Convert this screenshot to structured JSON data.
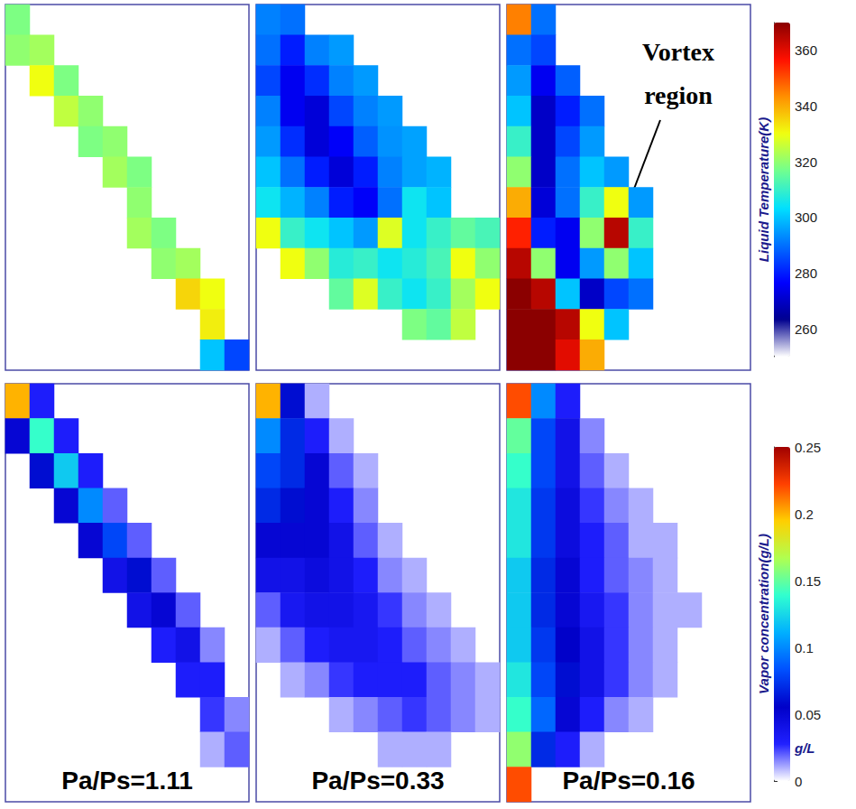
{
  "chart_data": {
    "type": "heatmap",
    "columns": [
      "Pa/Ps=1.11",
      "Pa/Ps=0.33",
      "Pa/Ps=0.16"
    ],
    "rows": [
      {
        "colorbar_title": "Liquid Temperature(K)",
        "colorbar_range": [
          250,
          370
        ],
        "colorbar_ticks": [
          260,
          280,
          300,
          320,
          340,
          360
        ],
        "panels": [
          [
            [
              318,
              null,
              null,
              null,
              null,
              null,
              null,
              null,
              null,
              null
            ],
            [
              320,
              322,
              null,
              null,
              null,
              null,
              null,
              null,
              null,
              null
            ],
            [
              null,
              330,
              318,
              null,
              null,
              null,
              null,
              null,
              null,
              null
            ],
            [
              null,
              null,
              325,
              320,
              null,
              null,
              null,
              null,
              null,
              null
            ],
            [
              null,
              null,
              null,
              318,
              320,
              null,
              null,
              null,
              null,
              null
            ],
            [
              null,
              null,
              null,
              null,
              322,
              318,
              null,
              null,
              null,
              null
            ],
            [
              null,
              null,
              null,
              null,
              null,
              320,
              null,
              null,
              null,
              null
            ],
            [
              null,
              null,
              null,
              null,
              null,
              322,
              318,
              null,
              null,
              null
            ],
            [
              null,
              null,
              null,
              null,
              null,
              null,
              320,
              322,
              null,
              null
            ],
            [
              null,
              null,
              null,
              null,
              null,
              null,
              null,
              335,
              330,
              null
            ],
            [
              null,
              null,
              null,
              null,
              null,
              null,
              null,
              null,
              332,
              null
            ],
            [
              null,
              null,
              null,
              null,
              null,
              null,
              null,
              null,
              300,
              285
            ]
          ],
          [
            [
              292,
              290,
              null,
              null,
              null,
              null,
              null,
              null,
              null,
              null
            ],
            [
              290,
              280,
              292,
              295,
              null,
              null,
              null,
              null,
              null,
              null
            ],
            [
              285,
              275,
              282,
              292,
              295,
              null,
              null,
              null,
              null,
              null
            ],
            [
              292,
              275,
              272,
              285,
              292,
              295,
              null,
              null,
              null,
              null
            ],
            [
              295,
              282,
              272,
              276,
              288,
              294,
              296,
              null,
              null,
              null
            ],
            [
              300,
              290,
              280,
              272,
              280,
              292,
              296,
              298,
              null,
              null
            ],
            [
              305,
              298,
              292,
              280,
              276,
              290,
              305,
              300,
              null,
              null
            ],
            [
              330,
              310,
              305,
              300,
              295,
              328,
              305,
              310,
              315,
              312
            ],
            [
              null,
              330,
              320,
              308,
              310,
              305,
              308,
              312,
              330,
              320
            ],
            [
              null,
              null,
              null,
              315,
              328,
              310,
              305,
              310,
              322,
              330
            ],
            [
              null,
              null,
              null,
              null,
              null,
              null,
              318,
              315,
              325,
              null
            ],
            [
              null,
              null,
              null,
              null,
              null,
              null,
              null,
              null,
              null,
              null
            ]
          ],
          [
            [
              345,
              290,
              null,
              null,
              null,
              null,
              null,
              null,
              null,
              null
            ],
            [
              290,
              285,
              null,
              null,
              null,
              null,
              null,
              null,
              null,
              null
            ],
            [
              295,
              275,
              288,
              null,
              null,
              null,
              null,
              null,
              null,
              null
            ],
            [
              300,
              270,
              280,
              290,
              null,
              null,
              null,
              null,
              null,
              null
            ],
            [
              310,
              270,
              285,
              295,
              null,
              null,
              null,
              null,
              null,
              null
            ],
            [
              320,
              270,
              290,
              300,
              295,
              null,
              null,
              null,
              null,
              null
            ],
            [
              340,
              272,
              290,
              310,
              330,
              295,
              null,
              null,
              null,
              null
            ],
            [
              355,
              280,
              275,
              320,
              365,
              310,
              null,
              null,
              null,
              null
            ],
            [
              365,
              320,
              275,
              295,
              320,
              300,
              null,
              null,
              null,
              null
            ],
            [
              370,
              365,
              300,
              270,
              285,
              290,
              null,
              null,
              null,
              null
            ],
            [
              370,
              370,
              365,
              330,
              300,
              null,
              null,
              null,
              null,
              null
            ],
            [
              370,
              370,
              360,
              340,
              null,
              null,
              null,
              null,
              null,
              null
            ]
          ]
        ]
      },
      {
        "colorbar_title": "Vapor concentration(g/L)",
        "colorbar_unit": "g/L",
        "colorbar_range": [
          0,
          0.25
        ],
        "colorbar_ticks": [
          0,
          0.05,
          0.1,
          0.15,
          0.2,
          0.25
        ],
        "panels": [
          [
            [
              0.2,
              0.03,
              null,
              null,
              null,
              null,
              null,
              null,
              null,
              null
            ],
            [
              0.05,
              0.14,
              0.03,
              null,
              null,
              null,
              null,
              null,
              null,
              null
            ],
            [
              null,
              0.06,
              0.12,
              0.03,
              null,
              null,
              null,
              null,
              null,
              null
            ],
            [
              null,
              null,
              0.05,
              0.1,
              0.02,
              null,
              null,
              null,
              null,
              null
            ],
            [
              null,
              null,
              null,
              0.05,
              0.08,
              0.02,
              null,
              null,
              null,
              null
            ],
            [
              null,
              null,
              null,
              null,
              0.04,
              0.06,
              0.02,
              null,
              null,
              null
            ],
            [
              null,
              null,
              null,
              null,
              null,
              0.04,
              0.05,
              0.02,
              null,
              null
            ],
            [
              null,
              null,
              null,
              null,
              null,
              null,
              0.03,
              0.04,
              0.015,
              null
            ],
            [
              null,
              null,
              null,
              null,
              null,
              null,
              null,
              0.03,
              0.03,
              null
            ],
            [
              null,
              null,
              null,
              null,
              null,
              null,
              null,
              null,
              0.025,
              0.015
            ],
            [
              null,
              null,
              null,
              null,
              null,
              null,
              null,
              null,
              0.01,
              0.02
            ],
            [
              null,
              null,
              null,
              null,
              null,
              null,
              null,
              null,
              null,
              null
            ]
          ],
          [
            [
              0.2,
              0.06,
              0.01,
              null,
              null,
              null,
              null,
              null,
              null,
              null
            ],
            [
              0.1,
              0.07,
              0.03,
              0.01,
              null,
              null,
              null,
              null,
              null,
              null
            ],
            [
              0.08,
              0.07,
              0.05,
              0.02,
              0.01,
              null,
              null,
              null,
              null,
              null
            ],
            [
              0.07,
              0.06,
              0.05,
              0.03,
              0.015,
              null,
              null,
              null,
              null,
              null
            ],
            [
              0.05,
              0.05,
              0.05,
              0.04,
              0.02,
              0.01,
              null,
              null,
              null,
              null
            ],
            [
              0.04,
              0.04,
              0.045,
              0.04,
              0.03,
              0.015,
              0.01,
              null,
              null,
              null
            ],
            [
              0.02,
              0.035,
              0.04,
              0.04,
              0.035,
              0.025,
              0.015,
              0.01,
              null,
              null
            ],
            [
              0.01,
              0.02,
              0.03,
              0.035,
              0.035,
              0.03,
              0.02,
              0.015,
              0.01,
              null
            ],
            [
              null,
              0.01,
              0.015,
              0.025,
              0.03,
              0.03,
              0.03,
              0.02,
              0.015,
              0.01
            ],
            [
              null,
              null,
              null,
              0.01,
              0.015,
              0.02,
              0.025,
              0.02,
              0.015,
              0.01
            ],
            [
              null,
              null,
              null,
              null,
              null,
              0.01,
              0.01,
              0.01,
              null,
              null
            ],
            [
              null,
              null,
              null,
              null,
              null,
              null,
              null,
              null,
              null,
              null
            ]
          ],
          [
            [
              0.22,
              0.1,
              0.03,
              null,
              null,
              null,
              null,
              null,
              null,
              null
            ],
            [
              0.15,
              0.08,
              0.04,
              0.015,
              null,
              null,
              null,
              null,
              null,
              null
            ],
            [
              0.14,
              0.08,
              0.04,
              0.02,
              0.01,
              null,
              null,
              null,
              null,
              null
            ],
            [
              0.13,
              0.075,
              0.045,
              0.025,
              0.015,
              0.01,
              null,
              null,
              null,
              null
            ],
            [
              0.13,
              0.075,
              0.045,
              0.03,
              0.02,
              0.01,
              0.01,
              null,
              null,
              null
            ],
            [
              0.12,
              0.07,
              0.05,
              0.03,
              0.02,
              0.015,
              0.01,
              null,
              null,
              null
            ],
            [
              0.12,
              0.07,
              0.05,
              0.035,
              0.025,
              0.015,
              0.01,
              0.01,
              null,
              null
            ],
            [
              0.12,
              0.075,
              0.055,
              0.04,
              0.025,
              0.015,
              0.01,
              null,
              null,
              null
            ],
            [
              0.13,
              0.08,
              0.06,
              0.04,
              0.025,
              0.015,
              0.01,
              null,
              null,
              null
            ],
            [
              0.14,
              0.09,
              0.05,
              0.03,
              0.015,
              0.01,
              null,
              null,
              null,
              null
            ],
            [
              0.16,
              0.07,
              0.03,
              0.01,
              null,
              null,
              null,
              null,
              null,
              null
            ],
            [
              0.22,
              null,
              null,
              null,
              null,
              null,
              null,
              null,
              null,
              null
            ]
          ]
        ]
      }
    ],
    "annotations": [
      {
        "text": "Vortex region",
        "row": 0,
        "column": 2
      }
    ]
  }
}
